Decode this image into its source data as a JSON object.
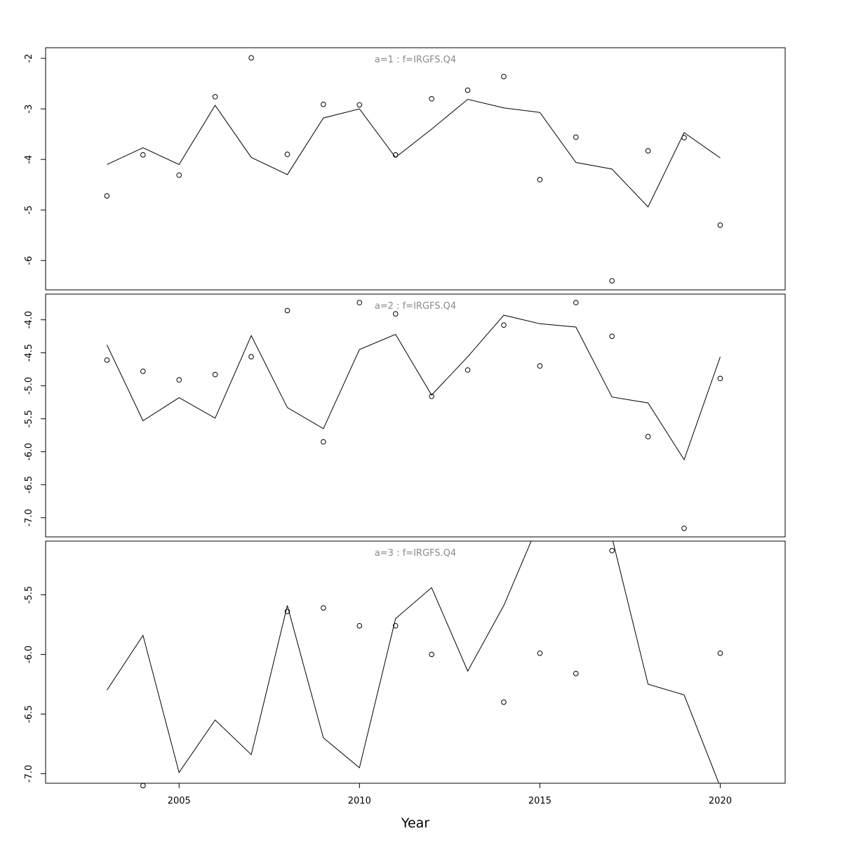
{
  "chart_data": {
    "type": "line",
    "xlabel": "Year",
    "x_ticks": [
      2005,
      2010,
      2015,
      2020
    ],
    "xlim": [
      2001.3,
      2021.8
    ],
    "grid": false,
    "colors": {
      "line": "#000000",
      "points": "#000000",
      "title": "#8a8a8a",
      "frame": "#000000"
    },
    "x": [
      2003,
      2004,
      2005,
      2006,
      2007,
      2008,
      2009,
      2010,
      2011,
      2012,
      2013,
      2014,
      2015,
      2016,
      2017,
      2018,
      2019,
      2020
    ],
    "panels": [
      {
        "title": "a=1 : f=IRGFS.Q4",
        "ylim": [
          -6.58,
          -1.79
        ],
        "y_ticks": [
          -2,
          -3,
          -4,
          -5,
          -6
        ],
        "series": [
          {
            "type": "line",
            "values": [
              -4.1,
              -3.77,
              -4.1,
              -2.93,
              -3.96,
              -4.3,
              -3.18,
              -3.0,
              -3.96,
              -3.4,
              -2.81,
              -2.98,
              -3.07,
              -4.06,
              -4.19,
              -4.94,
              -3.47,
              -3.97
            ]
          },
          {
            "type": "points",
            "values": [
              -4.72,
              -3.91,
              -4.31,
              -2.76,
              -1.99,
              -3.9,
              -2.91,
              -2.92,
              -3.91,
              -2.8,
              -2.63,
              -2.36,
              -4.4,
              -3.56,
              -6.4,
              -3.83,
              -3.57,
              -5.3
            ]
          }
        ]
      },
      {
        "title": "a=2 : f=IRGFS.Q4",
        "ylim": [
          -7.29,
          -3.61
        ],
        "y_ticks": [
          -4.0,
          -4.5,
          -5.0,
          -5.5,
          -6.0,
          -6.5,
          -7.0
        ],
        "series": [
          {
            "type": "line",
            "values": [
              -4.38,
              -5.53,
              -5.18,
              -5.49,
              -4.24,
              -5.33,
              -5.65,
              -4.45,
              -4.22,
              -5.14,
              -4.56,
              -3.93,
              -4.06,
              -4.11,
              -5.17,
              -5.26,
              -6.12,
              -4.56
            ]
          },
          {
            "type": "points",
            "values": [
              -4.61,
              -4.78,
              -4.91,
              -4.83,
              -4.56,
              -3.86,
              -5.85,
              -3.74,
              -3.91,
              -5.16,
              -4.76,
              -4.08,
              -4.7,
              -3.74,
              -4.25,
              -5.77,
              -7.16,
              -4.89
            ]
          }
        ]
      },
      {
        "title": "a=3 : f=IRGFS.Q4",
        "ylim": [
          -7.08,
          -5.05
        ],
        "y_ticks": [
          -5.5,
          -6.0,
          -6.5,
          -7.0
        ],
        "series": [
          {
            "type": "line",
            "values": [
              -6.3,
              -5.84,
              -6.99,
              -6.55,
              -6.84,
              -5.59,
              -6.7,
              -6.95,
              -5.7,
              -5.44,
              -6.14,
              -5.59,
              -4.88,
              -4.59,
              -5.02,
              -6.25,
              -6.34,
              -7.11
            ]
          },
          {
            "type": "points",
            "values": [
              null,
              -7.1,
              null,
              null,
              null,
              -5.64,
              -5.61,
              -5.76,
              -5.76,
              -6.0,
              null,
              -6.4,
              -5.99,
              -6.16,
              -5.13,
              null,
              null,
              -5.99
            ]
          }
        ]
      }
    ]
  }
}
